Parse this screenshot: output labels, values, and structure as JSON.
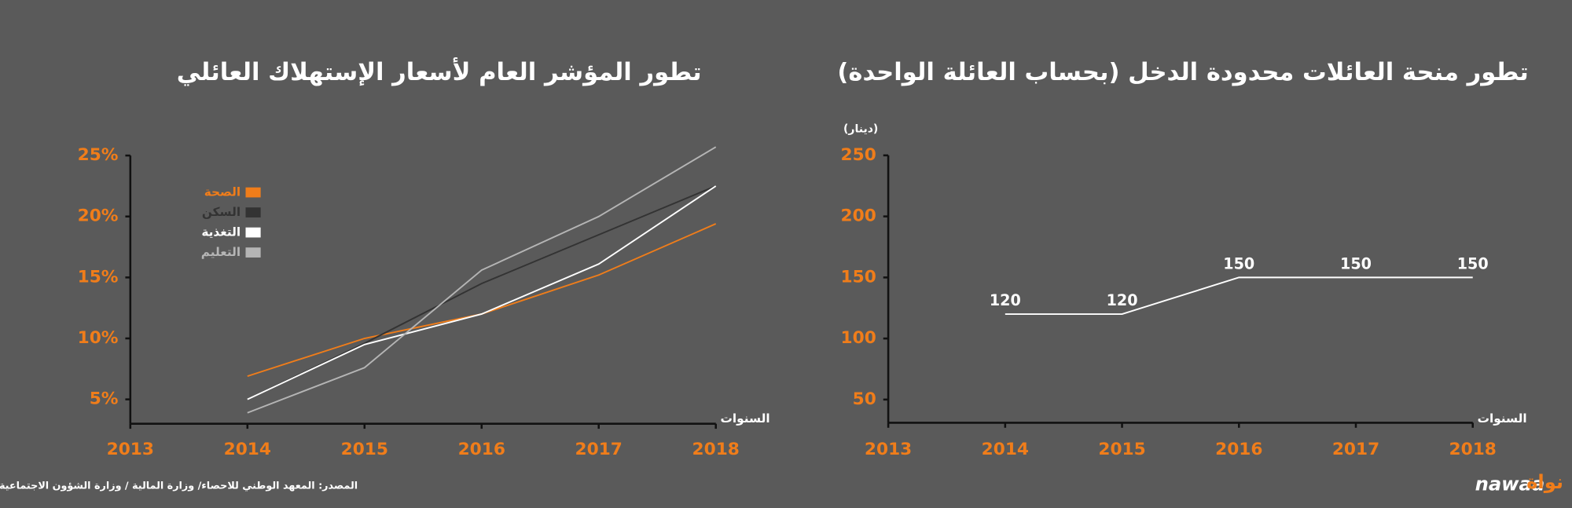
{
  "chart_data": [
    {
      "type": "line",
      "title": "تطور المؤشر العام لأسعار الإستهلاك العائلي",
      "x_label": "السنوات",
      "x": [
        2014,
        2015,
        2016,
        2017,
        2018
      ],
      "xlim": [
        2013,
        2018
      ],
      "xticks": [
        2013,
        2014,
        2015,
        2016,
        2017,
        2018
      ],
      "ylim": [
        3,
        26
      ],
      "yticks": [
        {
          "value": 5,
          "label": "5%"
        },
        {
          "value": 10,
          "label": "10%"
        },
        {
          "value": 15,
          "label": "15%"
        },
        {
          "value": 20,
          "label": "20%"
        },
        {
          "value": 25,
          "label": "25%"
        }
      ],
      "series": [
        {
          "name": "الصحة",
          "color": "#f07d1a",
          "values": [
            6.9,
            10,
            12,
            15.2,
            19.4
          ]
        },
        {
          "name": "السكن",
          "color": "#333333",
          "values": [
            5,
            9.6,
            14.5,
            18.5,
            22.5
          ]
        },
        {
          "name": "التغذية",
          "color": "#ffffff",
          "values": [
            5,
            9.5,
            12,
            16.1,
            22.5
          ]
        },
        {
          "name": "التعليم",
          "color": "#b5b5b5",
          "values": [
            3.9,
            7.6,
            15.6,
            20,
            25.7
          ]
        }
      ]
    },
    {
      "type": "line",
      "title": "تطور منحة العائلات محدودة الدخل (بحساب العائلة الواحدة)",
      "x_label": "السنوات",
      "y_label": "(دينار)",
      "x": [
        2014,
        2015,
        2016,
        2017,
        2018
      ],
      "xlim": [
        2013,
        2018
      ],
      "xticks": [
        2013,
        2014,
        2015,
        2016,
        2017,
        2018
      ],
      "ylim": [
        31,
        250
      ],
      "yticks": [
        50,
        100,
        150,
        200,
        250
      ],
      "series": [
        {
          "color": "#ffffff",
          "values": [
            120,
            120,
            150,
            150,
            150
          ]
        }
      ]
    }
  ],
  "source": "المصدر: المعهد الوطني للاحصاء/ وزارة المالية / وزارة الشؤون الاجتماعية",
  "logo": {
    "latin": "nawaa",
    "arabic": "نواة"
  }
}
